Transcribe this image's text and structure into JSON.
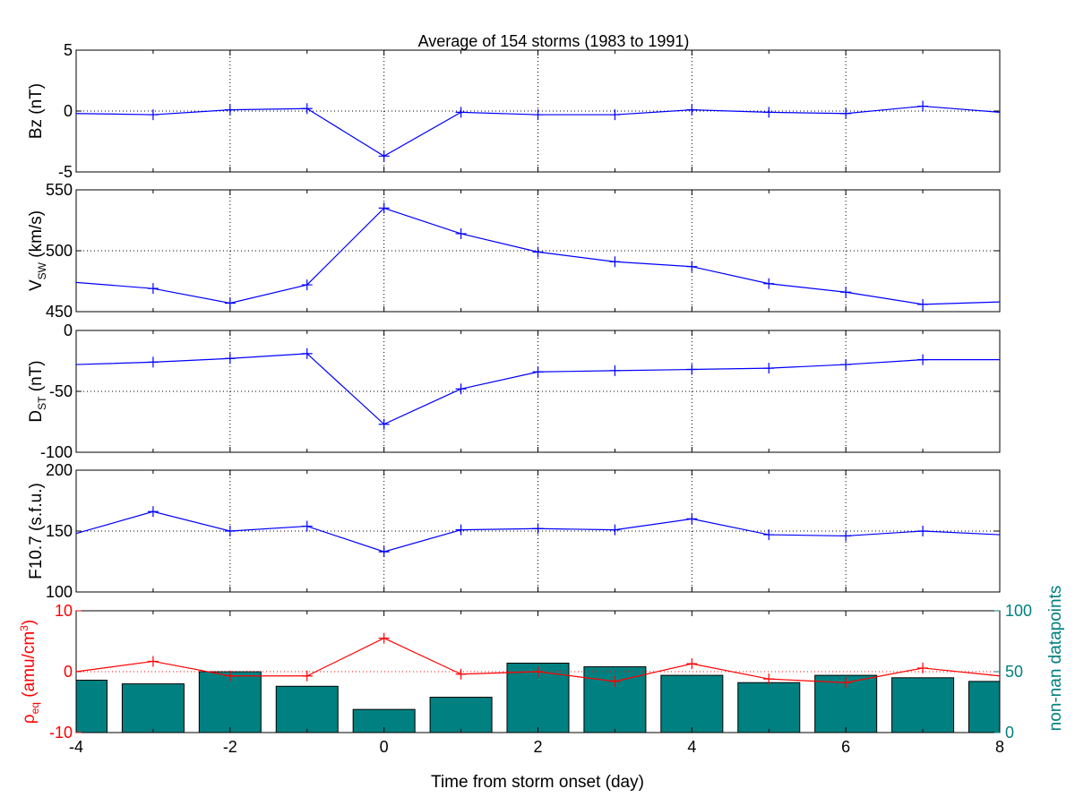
{
  "chart_data": {
    "type": "line",
    "title": "Average of 154 storms  (1983 to 1991)",
    "xlabel": "Time from storm onset (day)",
    "xlim": [
      -4,
      8
    ],
    "xticks": [
      "-4",
      "-2",
      "0",
      "2",
      "4",
      "6",
      "8"
    ],
    "x": [
      -4,
      -3,
      -2,
      -1,
      0,
      1,
      2,
      3,
      4,
      5,
      6,
      7,
      8
    ],
    "colors": {
      "line": "#0000ff",
      "rho": "#ff0000",
      "bars": "#008080",
      "axis": "#000000"
    },
    "panels": [
      {
        "ylabel_main": "Bz (nT)",
        "ylabel_sub": "",
        "ylabel_rest": "",
        "ylim": [
          -5,
          5
        ],
        "yticks": [
          "-5",
          "0",
          "5"
        ],
        "ytick_values": [
          -5,
          0,
          5
        ],
        "values": [
          -0.2,
          -0.3,
          0.1,
          0.2,
          -3.7,
          -0.1,
          -0.3,
          -0.3,
          0.1,
          -0.1,
          -0.2,
          0.4,
          -0.1
        ]
      },
      {
        "ylabel_main": "V",
        "ylabel_sub": "SW",
        "ylabel_rest": " (km/s)",
        "ylim": [
          450,
          550
        ],
        "yticks": [
          "450",
          "500",
          "550"
        ],
        "ytick_values": [
          450,
          500,
          550
        ],
        "values": [
          474,
          469,
          457,
          472,
          535,
          514,
          499,
          491,
          487,
          473,
          466,
          456,
          458
        ]
      },
      {
        "ylabel_main": "D",
        "ylabel_sub": "ST",
        "ylabel_rest": " (nT)",
        "ylim": [
          -100,
          0
        ],
        "yticks": [
          "-100",
          "-50",
          "0"
        ],
        "ytick_values": [
          -100,
          -50,
          0
        ],
        "values": [
          -28,
          -26,
          -23,
          -19,
          -77,
          -48,
          -34,
          -33,
          -32,
          -31,
          -28,
          -24,
          -24
        ]
      },
      {
        "ylabel_main": "F10.7 (s.f.u.)",
        "ylabel_sub": "",
        "ylabel_rest": "",
        "ylim": [
          100,
          200
        ],
        "yticks": [
          "100",
          "150",
          "200"
        ],
        "ytick_values": [
          100,
          150,
          200
        ],
        "values": [
          148,
          166,
          150,
          154,
          133,
          151,
          152,
          151,
          160,
          147,
          146,
          150,
          147
        ]
      }
    ],
    "bottom_panel": {
      "left_ylabel_main": "ρ",
      "left_ylabel_sub": "eq",
      "left_ylabel_rest": " (amu/cm",
      "left_ylabel_sup": "3",
      "left_ylabel_end": ")",
      "left_ylim": [
        -10,
        10
      ],
      "left_yticks": [
        "-10",
        "0",
        "10"
      ],
      "left_ytick_values": [
        -10,
        0,
        10
      ],
      "rho_values": [
        0,
        1.7,
        -0.7,
        -0.7,
        5.5,
        -0.4,
        0,
        -1.6,
        1.3,
        -1.2,
        -1.8,
        0.6,
        -0.7
      ],
      "right_ylabel": "non-nan datapoints",
      "right_ylim": [
        0,
        100
      ],
      "right_yticks": [
        "0",
        "50",
        "100"
      ],
      "right_ytick_values": [
        0,
        50,
        100
      ],
      "counts": [
        43,
        40,
        50,
        38,
        19,
        29,
        57,
        54,
        47,
        41,
        47,
        45,
        42
      ]
    }
  }
}
